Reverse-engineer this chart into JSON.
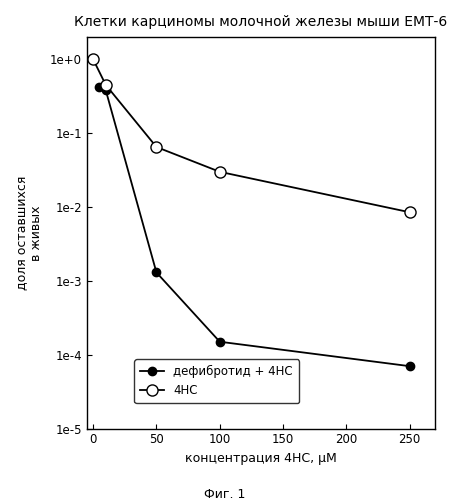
{
  "title": "Клетки карциномы молочной железы мыши ЕМТ-6",
  "xlabel": "концентрация 4НС, μМ",
  "ylabel": "доля оставшихся\nв живых",
  "caption": "Фиг. 1",
  "series1_label": "дефибротид + 4НС",
  "series2_label": "4НС",
  "series1_x": [
    5,
    10,
    50,
    100,
    250
  ],
  "series1_y": [
    0.42,
    0.38,
    0.0013,
    0.00015,
    7e-05
  ],
  "series2_x": [
    0,
    10,
    50,
    100,
    250
  ],
  "series2_y": [
    1.0,
    0.45,
    0.065,
    0.03,
    0.0085
  ],
  "xlim": [
    -5,
    270
  ],
  "ylim_lo": 1e-05,
  "ylim_hi": 2.0,
  "xticks": [
    0,
    50,
    100,
    150,
    200,
    250
  ],
  "yticks": [
    1e-05,
    0.0001,
    0.001,
    0.01,
    0.1,
    1.0
  ],
  "ytick_labels": [
    "1e-5",
    "1e-4",
    "1e-3",
    "1e-2",
    "1e-1",
    "1e+0"
  ],
  "bg_color": "#ffffff",
  "line_color": "#000000",
  "title_fontsize": 10,
  "label_fontsize": 9,
  "tick_fontsize": 8.5,
  "legend_fontsize": 8.5
}
